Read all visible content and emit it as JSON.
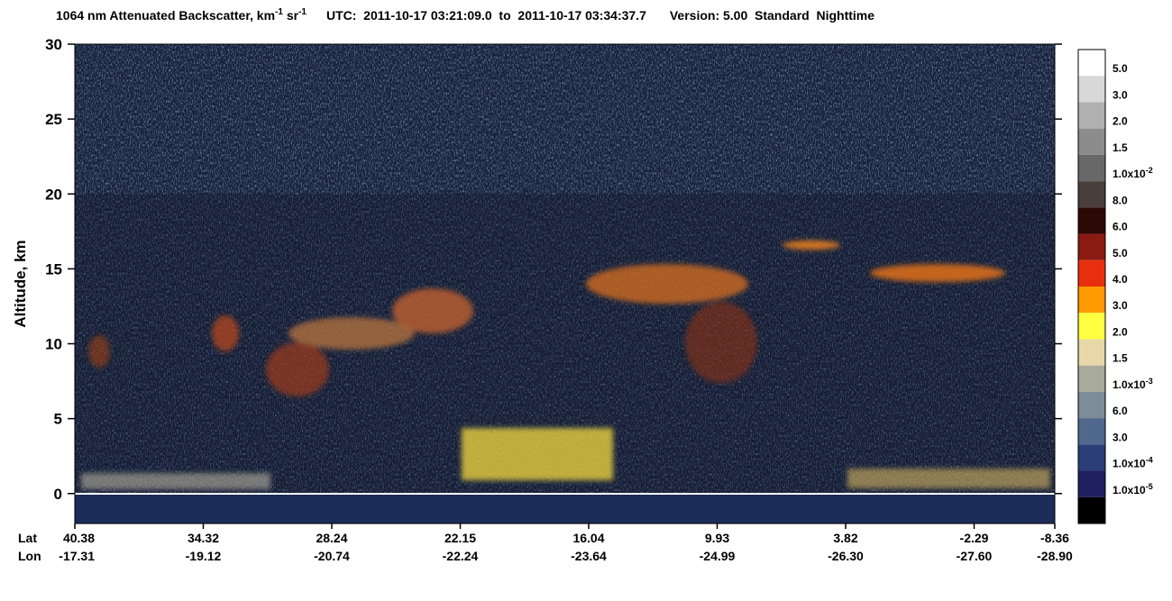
{
  "chart_data": {
    "type": "curtain",
    "title": {
      "main": "1064 nm Attenuated Backscatter, km",
      "main_exp": "-1",
      "unit2": " sr",
      "unit2_exp": "-1",
      "time": "UTC:  2011-10-17 03:21:09.0  to  2011-10-17 03:34:37.7",
      "version": "Version: 5.00  Standard  Nighttime"
    },
    "ylabel": "Altitude, km",
    "ylim": [
      -2,
      30
    ],
    "yticks": [
      0,
      5,
      10,
      15,
      20,
      25,
      30
    ],
    "x_row_labels": [
      "Lat",
      "Lon"
    ],
    "lat": [
      40.38,
      34.32,
      28.24,
      22.15,
      16.04,
      9.93,
      3.82,
      -2.29,
      -8.36
    ],
    "lon": [
      -17.31,
      -19.12,
      -20.74,
      -22.24,
      -23.64,
      -24.99,
      -26.3,
      -27.6,
      -28.9
    ],
    "lat_labels": [
      "40.38",
      "34.32",
      "28.24",
      "22.15",
      "16.04",
      "9.93",
      "3.82",
      "-2.29",
      "-8.36"
    ],
    "lon_labels": [
      "-17.31",
      "-19.12",
      "-20.74",
      "-22.24",
      "-23.64",
      "-24.99",
      "-26.30",
      "-27.60",
      "-28.90"
    ],
    "colorbar": {
      "colors": [
        "#ffffff",
        "#d8d8d8",
        "#b0b0b0",
        "#8c8c8c",
        "#686868",
        "#4a3e3a",
        "#2c0806",
        "#8a1a12",
        "#e82e0e",
        "#ff9a00",
        "#ffff40",
        "#e8d8a8",
        "#a8aa9c",
        "#7c8c98",
        "#50688e",
        "#2c3e78",
        "#1e2060",
        "#000000"
      ],
      "labels": [
        {
          "text": "5.0"
        },
        {
          "text": "3.0"
        },
        {
          "text": "2.0"
        },
        {
          "text": "1.5"
        },
        {
          "text": "1.0x10",
          "exp": "-2"
        },
        {
          "text": "8.0"
        },
        {
          "text": "6.0"
        },
        {
          "text": "5.0"
        },
        {
          "text": "4.0"
        },
        {
          "text": "3.0"
        },
        {
          "text": "2.0"
        },
        {
          "text": "1.5"
        },
        {
          "text": "1.0x10",
          "exp": "-3"
        },
        {
          "text": "6.0"
        },
        {
          "text": "3.0"
        },
        {
          "text": "1.0x10",
          "exp": "-4"
        },
        {
          "text": "1.0x10",
          "exp": "-5"
        }
      ]
    }
  }
}
